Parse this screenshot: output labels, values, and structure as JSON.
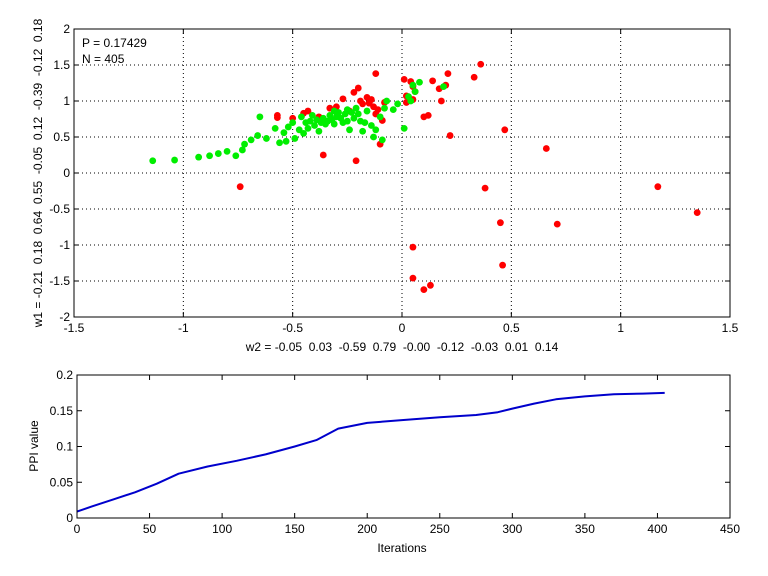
{
  "chart_data": [
    {
      "type": "scatter",
      "annotations": [
        "P = 0.17429",
        "N = 405"
      ],
      "xlabel": "w2 = -0.05  0.03  -0.59  0.79  -0.00  -0.12  -0.03  0.01  0.14",
      "ylabel": "w1 = -0.21  0.18  0.64  0.55  -0.05  0.12  -0.39  -0.12  0.18",
      "xlim": [
        -1.5,
        1.5
      ],
      "ylim": [
        -2,
        2
      ],
      "xticks": [
        "-1.5",
        "-1",
        "-0.5",
        "0",
        "0.5",
        "1",
        "1.5"
      ],
      "yticks": [
        "-2",
        "-1.5",
        "-1",
        "-0.5",
        "0",
        "0.5",
        "1",
        "1.5",
        "2"
      ],
      "xtick_values": [
        -1.5,
        -1,
        -0.5,
        0,
        0.5,
        1,
        1.5
      ],
      "ytick_values": [
        -2,
        -1.5,
        -1,
        -0.5,
        0,
        0.5,
        1,
        1.5,
        2
      ],
      "grid": true,
      "series": [
        {
          "color": "#ff0000",
          "points": [
            [
              -0.74,
              -0.19
            ],
            [
              -0.57,
              0.77
            ],
            [
              -0.57,
              0.8
            ],
            [
              -0.5,
              0.76
            ],
            [
              -0.45,
              0.83
            ],
            [
              -0.43,
              0.86
            ],
            [
              -0.38,
              0.78
            ],
            [
              -0.36,
              0.25
            ],
            [
              -0.33,
              0.9
            ],
            [
              -0.3,
              0.92
            ],
            [
              -0.27,
              1.03
            ],
            [
              -0.24,
              0.86
            ],
            [
              -0.22,
              1.12
            ],
            [
              -0.21,
              0.17
            ],
            [
              -0.2,
              1.18
            ],
            [
              -0.19,
              1.0
            ],
            [
              -0.18,
              0.96
            ],
            [
              -0.16,
              1.05
            ],
            [
              -0.15,
              0.97
            ],
            [
              -0.14,
              1.02
            ],
            [
              -0.13,
              0.92
            ],
            [
              -0.12,
              0.82
            ],
            [
              -0.12,
              1.38
            ],
            [
              -0.11,
              0.88
            ],
            [
              -0.1,
              0.4
            ],
            [
              -0.09,
              0.73
            ],
            [
              -0.08,
              0.98
            ],
            [
              0.01,
              1.3
            ],
            [
              0.02,
              1.07
            ],
            [
              0.02,
              0.98
            ],
            [
              0.04,
              1.27
            ],
            [
              0.05,
              1.2
            ],
            [
              0.06,
              1.13
            ],
            [
              0.05,
              1.02
            ],
            [
              0.1,
              0.78
            ],
            [
              0.12,
              0.8
            ],
            [
              0.14,
              1.28
            ],
            [
              0.17,
              1.17
            ],
            [
              0.18,
              1.0
            ],
            [
              0.2,
              1.22
            ],
            [
              0.21,
              1.38
            ],
            [
              0.22,
              0.52
            ],
            [
              0.33,
              1.33
            ],
            [
              0.36,
              1.51
            ],
            [
              0.38,
              -0.21
            ],
            [
              0.45,
              -0.69
            ],
            [
              0.46,
              -1.28
            ],
            [
              0.47,
              0.6
            ],
            [
              0.66,
              0.34
            ],
            [
              0.71,
              -0.71
            ],
            [
              1.17,
              -0.19
            ],
            [
              1.35,
              -0.55
            ],
            [
              0.05,
              -1.03
            ],
            [
              0.05,
              -1.46
            ],
            [
              0.1,
              -1.62
            ],
            [
              0.13,
              -1.56
            ]
          ]
        },
        {
          "color": "#00ee00",
          "points": [
            [
              -1.14,
              0.17
            ],
            [
              -1.04,
              0.18
            ],
            [
              -0.93,
              0.22
            ],
            [
              -0.88,
              0.24
            ],
            [
              -0.84,
              0.27
            ],
            [
              -0.8,
              0.3
            ],
            [
              -0.76,
              0.24
            ],
            [
              -0.73,
              0.32
            ],
            [
              -0.72,
              0.4
            ],
            [
              -0.69,
              0.46
            ],
            [
              -0.66,
              0.52
            ],
            [
              -0.65,
              0.78
            ],
            [
              -0.62,
              0.48
            ],
            [
              -0.58,
              0.62
            ],
            [
              -0.56,
              0.42
            ],
            [
              -0.54,
              0.56
            ],
            [
              -0.52,
              0.64
            ],
            [
              -0.5,
              0.7
            ],
            [
              -0.49,
              0.48
            ],
            [
              -0.47,
              0.6
            ],
            [
              -0.45,
              0.55
            ],
            [
              -0.44,
              0.7
            ],
            [
              -0.43,
              0.62
            ],
            [
              -0.42,
              0.72
            ],
            [
              -0.41,
              0.8
            ],
            [
              -0.4,
              0.66
            ],
            [
              -0.39,
              0.74
            ],
            [
              -0.38,
              0.58
            ],
            [
              -0.37,
              0.7
            ],
            [
              -0.36,
              0.76
            ],
            [
              -0.35,
              0.68
            ],
            [
              -0.34,
              0.72
            ],
            [
              -0.33,
              0.8
            ],
            [
              -0.32,
              0.74
            ],
            [
              -0.31,
              0.68
            ],
            [
              -0.3,
              0.78
            ],
            [
              -0.29,
              0.84
            ],
            [
              -0.28,
              0.76
            ],
            [
              -0.27,
              0.7
            ],
            [
              -0.26,
              0.82
            ],
            [
              -0.25,
              0.88
            ],
            [
              -0.25,
              0.72
            ],
            [
              -0.24,
              0.6
            ],
            [
              -0.23,
              0.84
            ],
            [
              -0.22,
              0.76
            ],
            [
              -0.21,
              0.9
            ],
            [
              -0.2,
              0.82
            ],
            [
              -0.19,
              0.72
            ],
            [
              -0.18,
              0.58
            ],
            [
              -0.17,
              0.7
            ],
            [
              -0.16,
              0.86
            ],
            [
              -0.14,
              0.66
            ],
            [
              -0.13,
              0.5
            ],
            [
              -0.12,
              0.6
            ],
            [
              -0.1,
              0.78
            ],
            [
              -0.09,
              0.46
            ],
            [
              -0.08,
              0.9
            ],
            [
              -0.07,
              1.0
            ],
            [
              -0.04,
              0.88
            ],
            [
              -0.02,
              0.96
            ],
            [
              0.01,
              0.62
            ],
            [
              0.03,
              1.06
            ],
            [
              0.04,
              1.0
            ],
            [
              0.05,
              1.22
            ],
            [
              0.06,
              1.13
            ],
            [
              0.08,
              1.26
            ],
            [
              0.19,
              1.2
            ],
            [
              -0.53,
              0.44
            ],
            [
              -0.46,
              0.78
            ],
            [
              -0.31,
              0.86
            ]
          ]
        }
      ]
    },
    {
      "type": "line",
      "xlabel": "Iterations",
      "ylabel": "PPI value",
      "xlim": [
        0,
        450
      ],
      "ylim": [
        0,
        0.2
      ],
      "xticks": [
        "0",
        "50",
        "100",
        "150",
        "200",
        "250",
        "300",
        "350",
        "400",
        "450"
      ],
      "yticks": [
        "0",
        "0.05",
        "0.1",
        "0.15",
        "0.2"
      ],
      "xtick_values": [
        0,
        50,
        100,
        150,
        200,
        250,
        300,
        350,
        400,
        450
      ],
      "ytick_values": [
        0,
        0.05,
        0.1,
        0.15,
        0.2
      ],
      "grid": false,
      "series": [
        {
          "color": "#0000cc",
          "x": [
            0,
            10,
            25,
            40,
            55,
            70,
            90,
            110,
            130,
            150,
            165,
            180,
            200,
            225,
            250,
            275,
            290,
            300,
            315,
            330,
            350,
            370,
            390,
            405
          ],
          "y": [
            0.009,
            0.016,
            0.026,
            0.036,
            0.048,
            0.062,
            0.072,
            0.08,
            0.089,
            0.1,
            0.109,
            0.125,
            0.133,
            0.137,
            0.141,
            0.144,
            0.148,
            0.153,
            0.16,
            0.166,
            0.17,
            0.173,
            0.174,
            0.175
          ]
        }
      ]
    }
  ]
}
